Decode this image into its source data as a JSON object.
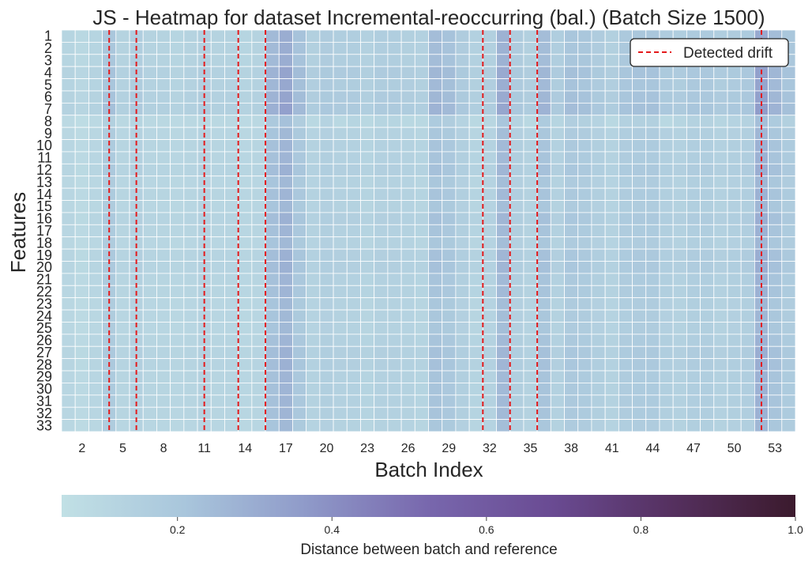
{
  "chart_data": {
    "type": "heatmap",
    "title": "JS - Heatmap for dataset Incremental-reoccurring (bal.) (Batch Size 1500)",
    "xlabel": "Batch Index",
    "ylabel": "Features",
    "x_start": 1,
    "x_end": 54,
    "y_start": 1,
    "y_end": 33,
    "x_tick_labels": [
      "2",
      "5",
      "8",
      "11",
      "14",
      "17",
      "20",
      "23",
      "26",
      "29",
      "32",
      "35",
      "38",
      "41",
      "44",
      "47",
      "50",
      "53"
    ],
    "color_scale": {
      "min": 0.05,
      "max": 1.0,
      "ticks": [
        "0.2",
        "0.4",
        "0.6",
        "0.8",
        "1.0"
      ],
      "tick_values": [
        0.2,
        0.4,
        0.6,
        0.8,
        1.0
      ],
      "label": "Distance between batch and reference",
      "colors": [
        "#c1e0e5",
        "#a9c6dc",
        "#8f9ac9",
        "#7867ad",
        "#6a4b93",
        "#55305f",
        "#3b1a2d"
      ]
    },
    "cell_grid_lines": true,
    "detected_drifts": [
      4,
      6,
      11,
      13.5,
      15.5,
      31.5,
      33.5,
      35.5,
      52
    ],
    "legend": {
      "label": "Detected drift",
      "position": "top-right",
      "color": "#e41a1c"
    },
    "column_values": [
      0.12,
      0.1,
      0.12,
      0.2,
      0.13,
      0.16,
      0.13,
      0.13,
      0.12,
      0.13,
      0.15,
      0.13,
      0.13,
      0.12,
      0.13,
      0.25,
      0.3,
      0.22,
      0.15,
      0.17,
      0.16,
      0.16,
      0.14,
      0.16,
      0.16,
      0.15,
      0.14,
      0.24,
      0.22,
      0.17,
      0.14,
      0.15,
      0.28,
      0.17,
      0.15,
      0.24,
      0.16,
      0.21,
      0.2,
      0.17,
      0.15,
      0.19,
      0.2,
      0.2,
      0.17,
      0.16,
      0.18,
      0.18,
      0.16,
      0.17,
      0.18,
      0.31,
      0.24,
      0.2
    ],
    "column_profile": [
      0,
      0,
      0,
      1,
      0,
      1,
      0,
      0,
      0,
      0,
      0,
      0,
      0,
      0,
      0,
      2,
      2,
      2,
      0,
      1,
      0,
      1,
      0,
      1,
      1,
      0,
      0,
      2,
      2,
      1,
      0,
      1,
      2,
      1,
      0,
      2,
      1,
      1,
      1,
      1,
      0,
      1,
      1,
      1,
      0,
      1,
      1,
      1,
      1,
      1,
      1,
      3,
      3,
      3
    ],
    "row_multipliers": [
      1.0,
      1.0,
      1.0,
      1.1,
      1.05,
      1.1,
      1.15,
      0.75,
      0.85,
      0.9,
      0.9,
      0.95,
      0.85,
      0.9,
      0.85,
      0.95,
      0.9,
      0.85,
      0.95,
      0.95,
      0.9,
      0.9,
      0.85,
      0.85,
      0.85,
      0.9,
      0.95,
      0.95,
      0.9,
      0.9,
      0.9,
      0.9,
      0.85
    ],
    "note_values": "cell values approximate, derived as column_values × row_multipliers"
  }
}
